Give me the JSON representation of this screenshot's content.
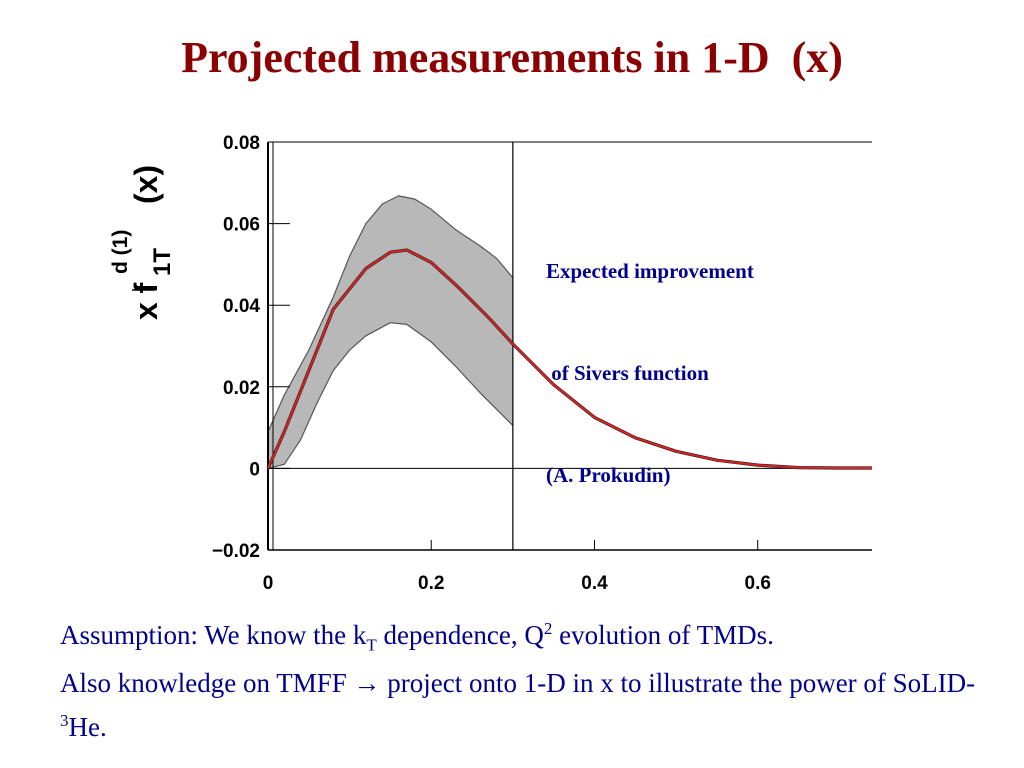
{
  "slide": {
    "title": "Projected measurements in 1-D  (x)",
    "annotation_lines": [
      "Expected improvement",
      " of Sivers function",
      "(A. Prokudin)"
    ],
    "footer": {
      "p1": "Assumption: We know the k",
      "p1_sub": "T",
      "p2": " dependence, Q",
      "p2_sup": "2",
      "p3": " evolution of TMDs.",
      "p4": "Also knowledge on TMFF ",
      "arrow": "→",
      "p5": " project onto 1-D in x to illustrate the power of SoLID-",
      "p5_sup": "3",
      "p6": "He."
    }
  },
  "chart_data": {
    "type": "line",
    "title": "",
    "xlabel": "",
    "ylabel": {
      "base": "x f",
      "sub": "1T",
      "sup": "d (1)",
      "suffix": "(x)"
    },
    "xlim": [
      0,
      0.74
    ],
    "ylim": [
      -0.02,
      0.08
    ],
    "x_ticks": [
      0,
      0.2,
      0.4,
      0.6
    ],
    "x_tick_labels": [
      "0",
      "0.2",
      "0.4",
      "0.6"
    ],
    "y_ticks": [
      -0.02,
      0,
      0.02,
      0.04,
      0.06,
      0.08
    ],
    "y_tick_labels": [
      "−0.02",
      "0",
      "0.02",
      "0.04",
      "0.06",
      "0.08"
    ],
    "vertical_line_x": 0.3,
    "band_x_range": [
      0,
      0.3
    ],
    "series": [
      {
        "role": "central",
        "color": "#e02020",
        "x": [
          0,
          0.02,
          0.05,
          0.08,
          0.12,
          0.15,
          0.17,
          0.2,
          0.23,
          0.27,
          0.3,
          0.35,
          0.4,
          0.45,
          0.5,
          0.55,
          0.6,
          0.65,
          0.7,
          0.74
        ],
        "y": [
          0,
          0.009,
          0.024,
          0.039,
          0.049,
          0.053,
          0.0535,
          0.0505,
          0.045,
          0.037,
          0.0305,
          0.0205,
          0.0125,
          0.0075,
          0.0042,
          0.002,
          0.0008,
          0.0002,
          0.0001,
          0.0001
        ]
      },
      {
        "role": "band-upper",
        "color": "#555555",
        "x": [
          0,
          0.02,
          0.05,
          0.08,
          0.1,
          0.12,
          0.14,
          0.16,
          0.18,
          0.2,
          0.23,
          0.26,
          0.28,
          0.3
        ],
        "y": [
          0.009,
          0.018,
          0.029,
          0.042,
          0.052,
          0.06,
          0.0648,
          0.0668,
          0.066,
          0.0635,
          0.0585,
          0.0545,
          0.0515,
          0.0467
        ]
      },
      {
        "role": "band-lower",
        "color": "#555555",
        "x": [
          0,
          0.02,
          0.04,
          0.06,
          0.08,
          0.1,
          0.12,
          0.15,
          0.17,
          0.2,
          0.23,
          0.26,
          0.28,
          0.3
        ],
        "y": [
          0,
          0.001,
          0.007,
          0.016,
          0.024,
          0.029,
          0.0325,
          0.0357,
          0.0353,
          0.031,
          0.025,
          0.0185,
          0.0145,
          0.0105
        ]
      }
    ],
    "band_fill": "#b8b8b8",
    "grid": false,
    "legend": "none"
  }
}
